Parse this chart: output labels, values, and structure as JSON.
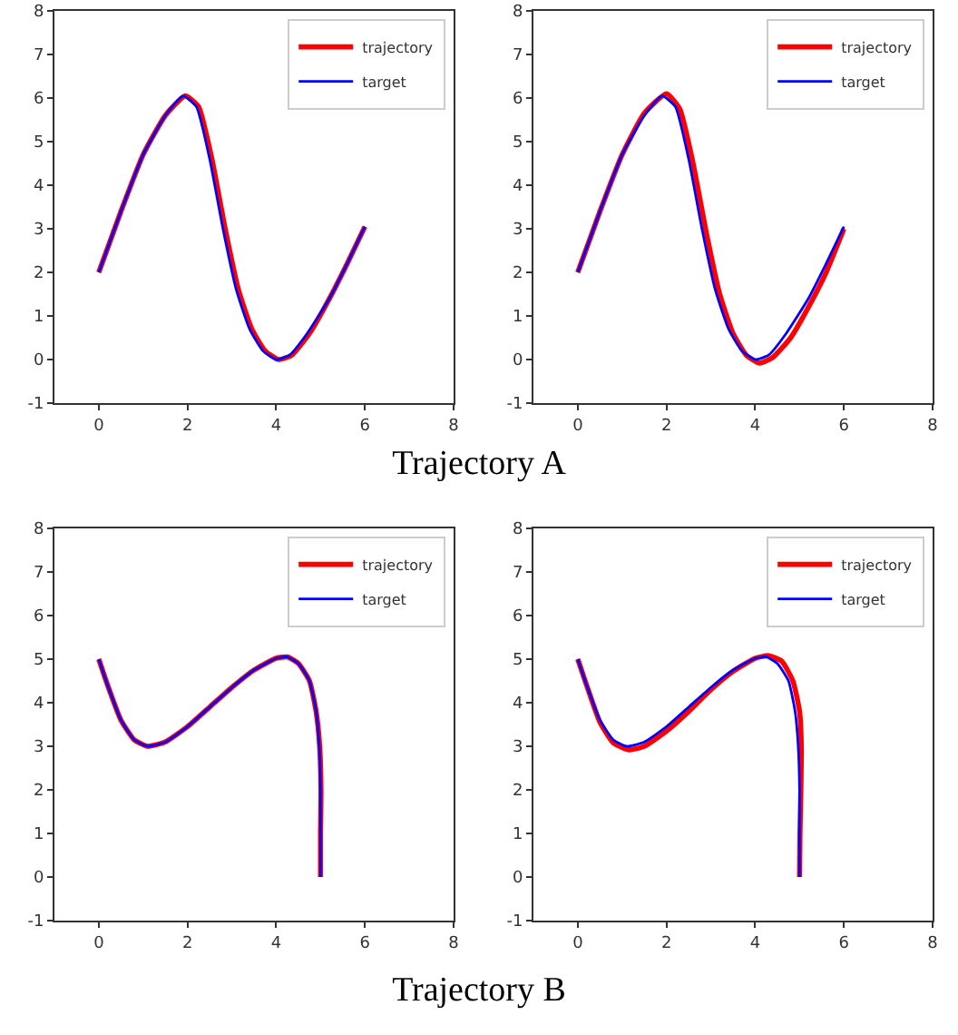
{
  "chart_data": [
    {
      "type": "line",
      "legend": "top right",
      "grid": false,
      "line_style": "solid",
      "marker": "none",
      "xlim": [
        -1,
        8
      ],
      "ylim": [
        -1,
        8
      ],
      "xticks": [
        0,
        2,
        4,
        6,
        8
      ],
      "yticks": [
        -1,
        0,
        1,
        2,
        3,
        4,
        5,
        6,
        7,
        8
      ],
      "series": [
        {
          "name": "trajectory",
          "color": "#ff0000",
          "x": [
            0,
            0.5,
            1,
            1.5,
            1.95,
            2.25,
            2.55,
            2.85,
            3.15,
            3.45,
            3.75,
            4.05,
            4.35,
            4.75,
            5.2,
            5.6,
            6
          ],
          "values": [
            2,
            3.4,
            4.7,
            5.6,
            6.05,
            5.8,
            4.6,
            3.0,
            1.6,
            0.7,
            0.2,
            0,
            0.1,
            0.6,
            1.4,
            2.2,
            3.05
          ]
        },
        {
          "name": "target",
          "color": "#0000ff",
          "x": [
            0,
            0.5,
            1,
            1.5,
            1.9,
            2.2,
            2.5,
            2.8,
            3.1,
            3.4,
            3.7,
            4,
            4.3,
            4.7,
            5.2,
            5.6,
            6
          ],
          "values": [
            2,
            3.4,
            4.7,
            5.6,
            6.05,
            5.8,
            4.6,
            3.0,
            1.6,
            0.7,
            0.2,
            0,
            0.1,
            0.6,
            1.4,
            2.2,
            3.05
          ]
        }
      ],
      "annotations": [
        "Trajectory A"
      ]
    },
    {
      "type": "line",
      "legend": "top right",
      "grid": false,
      "line_style": "solid",
      "marker": "none",
      "xlim": [
        -1,
        8
      ],
      "ylim": [
        -1,
        8
      ],
      "xticks": [
        0,
        2,
        4,
        6,
        8
      ],
      "yticks": [
        -1,
        0,
        1,
        2,
        3,
        4,
        5,
        6,
        7,
        8
      ],
      "series": [
        {
          "name": "trajectory",
          "color": "#ff0000",
          "x": [
            0,
            0.5,
            1,
            1.5,
            2.0,
            2.3,
            2.6,
            2.9,
            3.2,
            3.5,
            3.8,
            4.1,
            4.4,
            4.8,
            5.2,
            5.6,
            6
          ],
          "values": [
            2,
            3.4,
            4.7,
            5.65,
            6.1,
            5.75,
            4.5,
            2.9,
            1.5,
            0.6,
            0.1,
            -0.08,
            0.05,
            0.5,
            1.2,
            2.0,
            3.0
          ]
        },
        {
          "name": "target",
          "color": "#0000ff",
          "x": [
            0,
            0.5,
            1,
            1.5,
            1.9,
            2.2,
            2.5,
            2.8,
            3.1,
            3.4,
            3.7,
            4,
            4.3,
            4.7,
            5.2,
            5.6,
            6
          ],
          "values": [
            2,
            3.4,
            4.7,
            5.6,
            6.05,
            5.8,
            4.6,
            3.0,
            1.6,
            0.7,
            0.2,
            0,
            0.1,
            0.6,
            1.4,
            2.2,
            3.05
          ]
        }
      ]
    },
    {
      "type": "line",
      "legend": "top right",
      "grid": false,
      "line_style": "solid",
      "marker": "none",
      "xlim": [
        -1,
        8
      ],
      "ylim": [
        -1,
        8
      ],
      "xticks": [
        0,
        2,
        4,
        6,
        8
      ],
      "yticks": [
        -1,
        0,
        1,
        2,
        3,
        4,
        5,
        6,
        7,
        8
      ],
      "series": [
        {
          "name": "trajectory",
          "color": "#ff0000",
          "x": [
            0,
            0.2,
            0.5,
            0.8,
            1.1,
            1.5,
            2,
            2.5,
            3,
            3.5,
            4,
            4.25,
            4.5,
            4.75,
            4.9,
            4.98,
            5.01,
            5,
            5
          ],
          "values": [
            5,
            4.4,
            3.6,
            3.15,
            3.0,
            3.1,
            3.45,
            3.9,
            4.35,
            4.75,
            5.02,
            5.05,
            4.9,
            4.5,
            3.8,
            3.0,
            2,
            1,
            0
          ]
        },
        {
          "name": "target",
          "color": "#0000ff",
          "x": [
            0,
            0.2,
            0.5,
            0.8,
            1.1,
            1.5,
            2,
            2.5,
            3,
            3.5,
            4,
            4.25,
            4.5,
            4.75,
            4.9,
            4.97,
            5,
            5,
            5
          ],
          "values": [
            5,
            4.4,
            3.6,
            3.15,
            3.0,
            3.1,
            3.45,
            3.9,
            4.35,
            4.75,
            5.02,
            5.05,
            4.9,
            4.5,
            3.8,
            3.0,
            2,
            1,
            0
          ]
        }
      ],
      "annotations": [
        "Trajectory B"
      ]
    },
    {
      "type": "line",
      "legend": "top right",
      "grid": false,
      "line_style": "solid",
      "marker": "none",
      "xlim": [
        -1,
        8
      ],
      "ylim": [
        -1,
        8
      ],
      "xticks": [
        0,
        2,
        4,
        6,
        8
      ],
      "yticks": [
        -1,
        0,
        1,
        2,
        3,
        4,
        5,
        6,
        7,
        8
      ],
      "series": [
        {
          "name": "trajectory",
          "color": "#ff0000",
          "x": [
            0,
            0.2,
            0.5,
            0.8,
            1.15,
            1.5,
            2,
            2.5,
            3,
            3.5,
            4,
            4.3,
            4.6,
            4.85,
            5,
            5.04,
            5.03,
            5.01,
            5
          ],
          "values": [
            5,
            4.4,
            3.55,
            3.08,
            2.92,
            3.0,
            3.35,
            3.8,
            4.3,
            4.72,
            5.02,
            5.08,
            4.95,
            4.5,
            3.8,
            3.0,
            2,
            1,
            0
          ]
        },
        {
          "name": "target",
          "color": "#0000ff",
          "x": [
            0,
            0.2,
            0.5,
            0.8,
            1.1,
            1.5,
            2,
            2.5,
            3,
            3.5,
            4,
            4.25,
            4.5,
            4.75,
            4.9,
            4.97,
            5,
            5,
            5
          ],
          "values": [
            5,
            4.4,
            3.6,
            3.15,
            3.0,
            3.1,
            3.45,
            3.9,
            4.35,
            4.75,
            5.02,
            5.05,
            4.9,
            4.5,
            3.8,
            3.0,
            2,
            1,
            0
          ]
        }
      ]
    }
  ]
}
